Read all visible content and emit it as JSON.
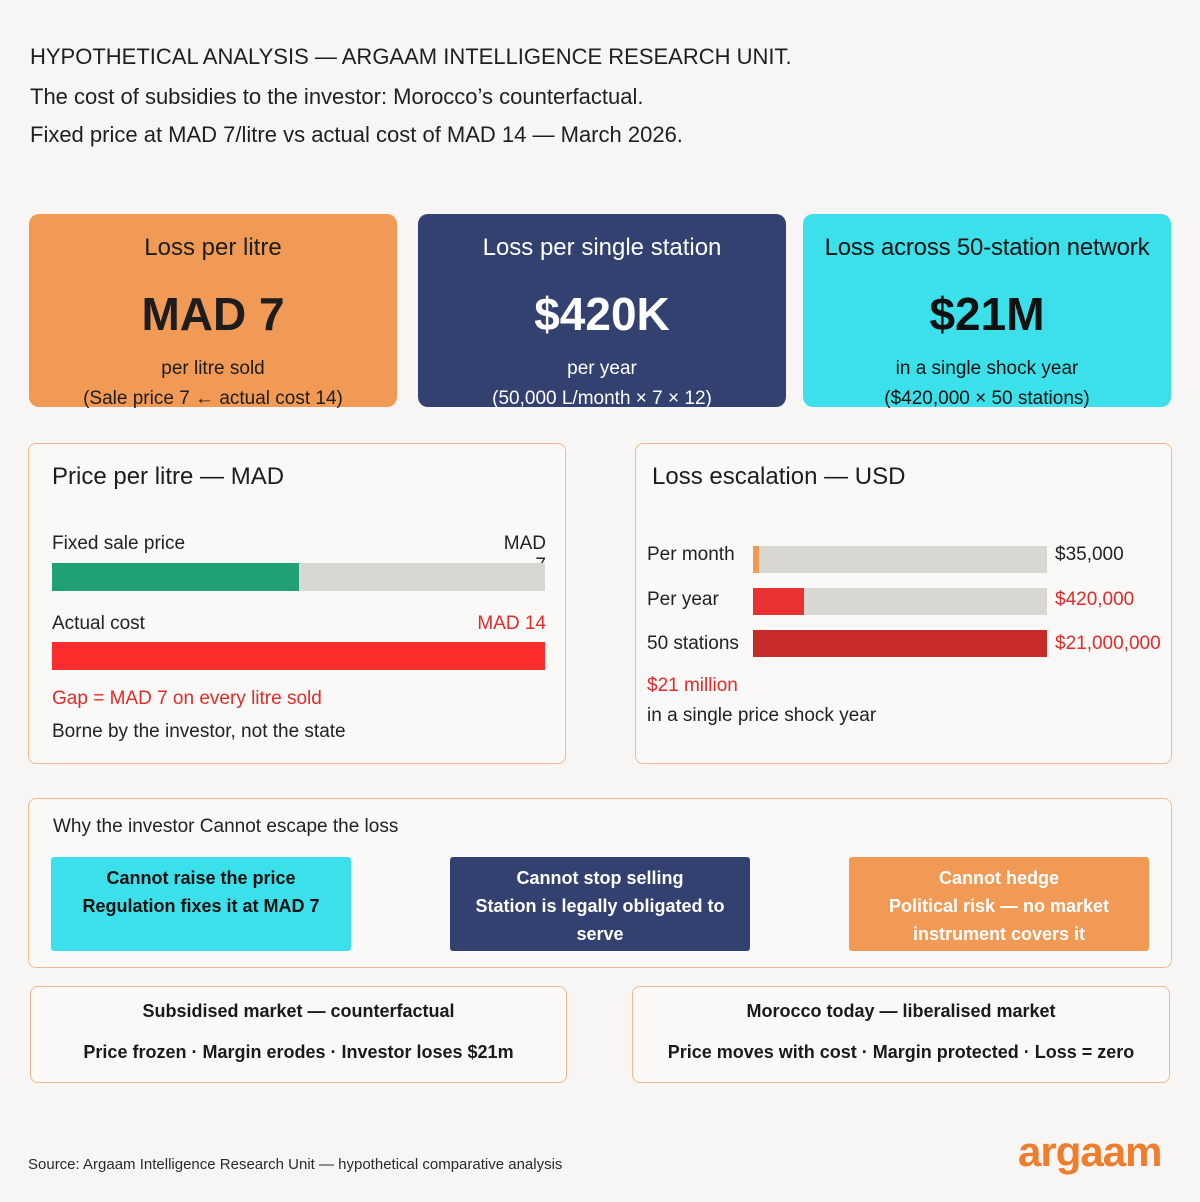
{
  "header": {
    "line1": "HYPOTHETICAL ANALYSIS — ARGAAM INTELLIGENCE RESEARCH UNIT.",
    "line2": "The cost of subsidies to the investor: Morocco’s counterfactual.",
    "line3": "Fixed price at MAD 7/litre vs actual cost of MAD 14 — March 2026."
  },
  "kpis": [
    {
      "title": "Loss per litre",
      "value": "MAD 7",
      "sub1": "per litre sold",
      "sub2": "(Sale price 7 ← actual cost 14)"
    },
    {
      "title": "Loss per single station",
      "value": "$420K",
      "sub1": "per year",
      "sub2": "(50,000 L/month × 7 × 12)"
    },
    {
      "title": "Loss across 50-station network",
      "value": "$21M",
      "sub1": "in a single shock year",
      "sub2": "($420,000 × 50 stations)"
    }
  ],
  "price_panel": {
    "title": "Price per litre — MAD",
    "fixed_label": "Fixed sale price",
    "fixed_value": "MAD 7",
    "actual_label": "Actual cost",
    "actual_value": "MAD 14",
    "gap_text": "Gap = MAD 7 on every litre sold",
    "note": "Borne by the investor, not the state"
  },
  "loss_panel": {
    "title": "Loss escalation — USD",
    "rows": [
      {
        "label": "Per month",
        "value": "$35,000"
      },
      {
        "label": "Per year",
        "value": "$420,000"
      },
      {
        "label": "50 stations",
        "value": "$21,000,000"
      }
    ],
    "highlight": "$21 million",
    "note": "in a single price shock year"
  },
  "chart_data": [
    {
      "type": "bar",
      "title": "Price per litre — MAD",
      "categories": [
        "Fixed sale price",
        "Actual cost"
      ],
      "values": [
        7,
        14
      ],
      "xlim": [
        0,
        14
      ]
    },
    {
      "type": "bar",
      "title": "Loss escalation — USD",
      "categories": [
        "Per month",
        "Per year",
        "50 stations"
      ],
      "values": [
        35000,
        420000,
        21000000
      ],
      "fill_fraction": [
        0.02,
        0.175,
        1.0
      ]
    }
  ],
  "why": {
    "title": "Why the investor Cannot escape the loss",
    "cards": [
      {
        "line1": "Cannot raise the price",
        "line2": "Regulation fixes it at MAD 7",
        "line3": ""
      },
      {
        "line1": "Cannot stop selling",
        "line2": "Station is legally obligated to serve",
        "line3": ""
      },
      {
        "line1": "Cannot hedge",
        "line2": "Political risk — no market",
        "line3": "instrument covers it"
      }
    ]
  },
  "compare": [
    {
      "title": "Subsidised market — counterfactual",
      "text": "Price frozen · Margin erodes · Investor loses $21m"
    },
    {
      "title": "Morocco today — liberalised market",
      "text": "Price moves with cost · Margin protected · Loss = zero"
    }
  ],
  "source": "Source: Argaam Intelligence Research Unit — hypothetical comparative analysis",
  "logo": "argaam",
  "colors": {
    "orange": "#f09a55",
    "navy": "#324170",
    "cyan": "#3ce0ea",
    "green": "#21a075",
    "red": "#fb2d2d",
    "dark_red": "#c62a2a",
    "accent_orange": "#ef7d2b"
  }
}
